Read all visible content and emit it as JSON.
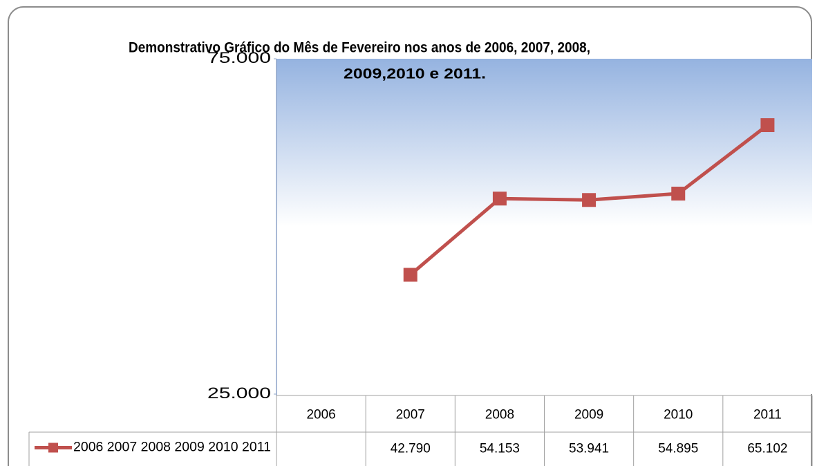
{
  "chart_data": {
    "type": "line",
    "title": [
      "Demonstrativo Gráfico do Mês de Fevereiro nos anos de 2006, 2007, 2008,",
      "2009,2010 e 2011."
    ],
    "categories": [
      "2006",
      "2007",
      "2008",
      "2009",
      "2010",
      "2011"
    ],
    "series": [
      {
        "name": "2006 2007 2008 2009 2010 2011",
        "color": "#c0504d",
        "values": [
          null,
          42790,
          54153,
          53941,
          54895,
          65102
        ],
        "value_labels": [
          null,
          "42.790",
          "54.153",
          "53.941",
          "54.895",
          "65.102"
        ]
      }
    ],
    "ylim": [
      25000,
      75000
    ],
    "yticks": [
      {
        "value": 25000,
        "label": "25.000"
      },
      {
        "value": 75000,
        "label": "75.000"
      }
    ],
    "grid": false
  }
}
